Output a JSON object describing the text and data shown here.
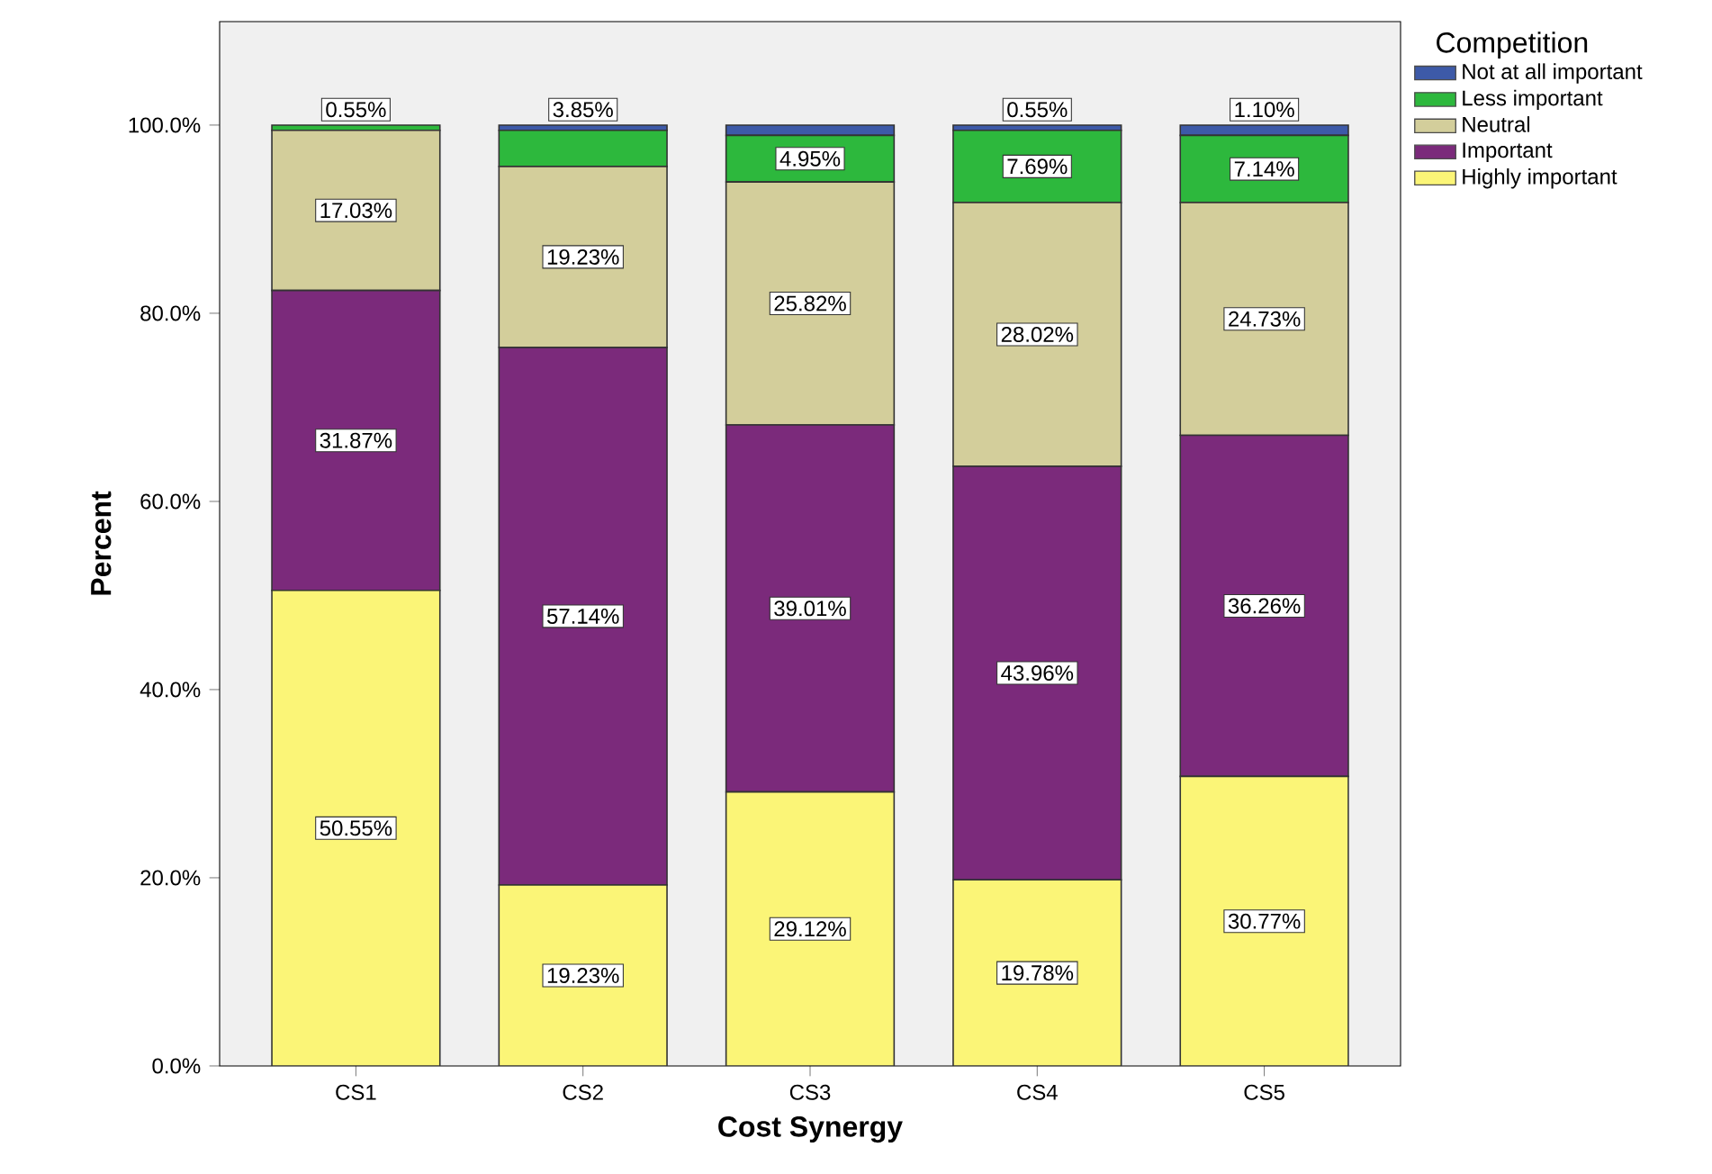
{
  "chart_data": {
    "type": "bar",
    "stacked": true,
    "xlabel": "Cost Synergy",
    "ylabel": "Percent",
    "legend_title": "Competition",
    "legend": "top right",
    "categories": [
      "CS1",
      "CS2",
      "CS3",
      "CS4",
      "CS5"
    ],
    "ylim": [
      0,
      111
    ],
    "yticks": [
      {
        "value": 0,
        "label": "0.0%"
      },
      {
        "value": 20,
        "label": "20.0%"
      },
      {
        "value": 40,
        "label": "40.0%"
      },
      {
        "value": 60,
        "label": "60.0%"
      },
      {
        "value": 80,
        "label": "80.0%"
      },
      {
        "value": 100,
        "label": "100.0%"
      }
    ],
    "series": [
      {
        "name": "Highly important",
        "color": "#fbf577",
        "values": [
          50.55,
          19.23,
          29.12,
          19.78,
          30.77
        ],
        "value_labels": [
          "50.55%",
          "19.23%",
          "29.12%",
          "19.78%",
          "30.77%"
        ]
      },
      {
        "name": "Important",
        "color": "#7b2a7b",
        "values": [
          31.87,
          57.14,
          39.01,
          43.96,
          36.26
        ],
        "value_labels": [
          "31.87%",
          "57.14%",
          "39.01%",
          "43.96%",
          "36.26%"
        ]
      },
      {
        "name": "Neutral",
        "color": "#d3ce9b",
        "values": [
          17.03,
          19.23,
          25.82,
          28.02,
          24.73
        ],
        "value_labels": [
          "17.03%",
          "19.23%",
          "25.82%",
          "28.02%",
          "24.73%"
        ]
      },
      {
        "name": "Less important",
        "color": "#2db83d",
        "values": [
          0.55,
          3.85,
          4.95,
          7.69,
          7.14
        ],
        "value_labels": [
          "0.55%",
          "3.85%",
          "4.95%",
          "7.69%",
          "7.14%"
        ]
      },
      {
        "name": "Not at all important",
        "color": "#3d5aa8",
        "values": [
          0,
          0.55,
          1.1,
          0.55,
          1.1
        ],
        "value_labels": [
          null,
          null,
          null,
          "0.55%",
          "1.10%"
        ]
      }
    ]
  }
}
